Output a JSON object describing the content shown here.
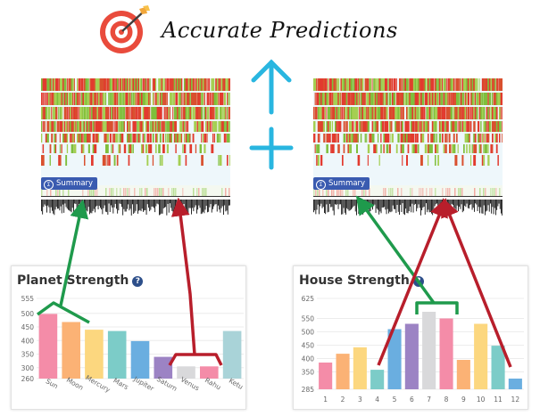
{
  "title": "Accurate Predictions",
  "summary_label": "Summary",
  "summary_icon": "sigma-icon",
  "colors": {
    "arrow_green": "#1f9a4c",
    "arrow_red": "#b81e2b",
    "cyan": "#29b6e0",
    "tab_blue": "#3a5bb0"
  },
  "planet_strength": {
    "title": "Planet Strength",
    "chart_data": {
      "type": "bar",
      "categories": [
        "Sun",
        "Moon",
        "Mercury",
        "Mars",
        "Jupiter",
        "Saturn",
        "Venus",
        "Rahu",
        "Ketu"
      ],
      "values": [
        498,
        468,
        440,
        435,
        398,
        340,
        305,
        305,
        435
      ],
      "colors": [
        "#f48ca8",
        "#fbb275",
        "#fcd77f",
        "#7cccc8",
        "#6aaee0",
        "#9c83c4",
        "#d9d9db",
        "#f48ca8",
        "#a9d3d8"
      ],
      "y_ticks": [
        555,
        500,
        450,
        400,
        350,
        300,
        260
      ],
      "ylim": [
        260,
        555
      ]
    }
  },
  "house_strength": {
    "title": "House Strength",
    "chart_data": {
      "type": "bar",
      "categories": [
        "1",
        "2",
        "3",
        "4",
        "5",
        "6",
        "7",
        "8",
        "9",
        "10",
        "11",
        "12"
      ],
      "values": [
        385,
        418,
        442,
        358,
        510,
        530,
        575,
        550,
        395,
        530,
        448,
        325
      ],
      "colors": [
        "#f48ca8",
        "#fbb275",
        "#fcd77f",
        "#7cccc8",
        "#6aaee0",
        "#9c83c4",
        "#d9d9db",
        "#f48ca8",
        "#fbb275",
        "#fcd77f",
        "#7cccc8",
        "#6aaee0"
      ],
      "y_ticks": [
        625,
        550,
        500,
        450,
        400,
        350,
        285
      ],
      "ylim": [
        285,
        625
      ]
    }
  }
}
